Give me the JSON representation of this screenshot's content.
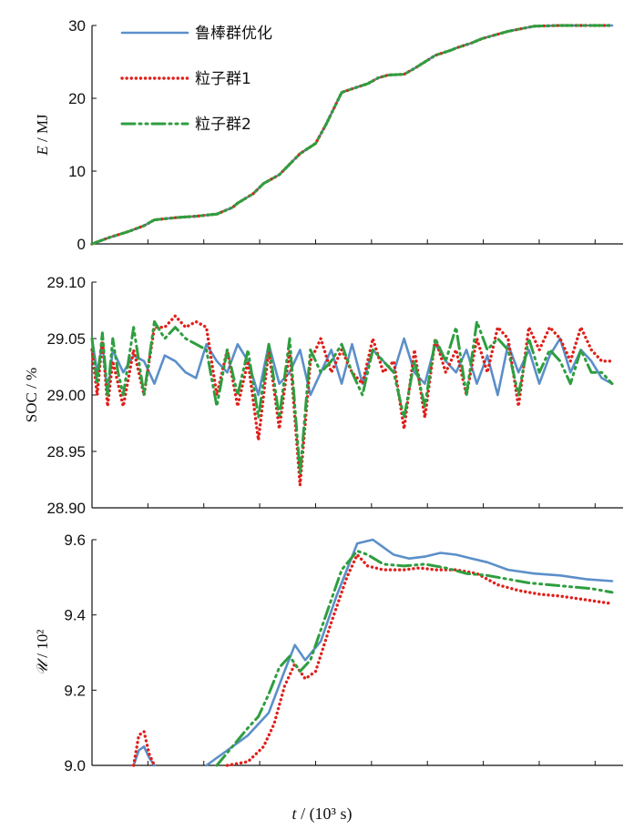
{
  "colors": {
    "series1": "#5b8fc9",
    "series2": "#e0201b",
    "series3": "#2e9e3f",
    "axis": "#111111"
  },
  "x_axis": {
    "label_italic": "t",
    "label_rest": " / (10³ s)"
  },
  "chart_data": [
    {
      "type": "line",
      "id": "energy",
      "ylabel_italic": "E",
      "ylabel_rest": " / MJ",
      "ylim": [
        0,
        30
      ],
      "yticks": [
        0,
        10,
        20,
        30
      ],
      "xlim": [
        0,
        1
      ],
      "legend": "top-left",
      "series": [
        {
          "name": "鲁棒群优化",
          "style": "solid",
          "x": [
            0,
            0.03,
            0.07,
            0.1,
            0.12,
            0.16,
            0.2,
            0.24,
            0.27,
            0.28,
            0.31,
            0.33,
            0.36,
            0.4,
            0.43,
            0.45,
            0.48,
            0.5,
            0.53,
            0.55,
            0.56,
            0.57,
            0.6,
            0.62,
            0.66,
            0.69,
            0.7,
            0.73,
            0.75,
            0.8,
            0.85,
            0.9,
            0.95,
            1.0
          ],
          "y": [
            0,
            0.8,
            1.7,
            2.5,
            3.3,
            3.6,
            3.8,
            4.1,
            5.0,
            5.6,
            6.9,
            8.3,
            9.5,
            12.4,
            13.8,
            16.4,
            20.8,
            21.3,
            22.0,
            22.8,
            23.0,
            23.2,
            23.3,
            24.1,
            25.9,
            26.6,
            26.9,
            27.6,
            28.2,
            29.2,
            29.9,
            30.6,
            31.2,
            31.6
          ]
        },
        {
          "name": "粒子群1",
          "style": "dotted",
          "x": [
            0,
            0.03,
            0.07,
            0.1,
            0.12,
            0.16,
            0.2,
            0.24,
            0.27,
            0.28,
            0.31,
            0.33,
            0.36,
            0.4,
            0.43,
            0.45,
            0.48,
            0.5,
            0.53,
            0.55,
            0.56,
            0.57,
            0.6,
            0.62,
            0.66,
            0.69,
            0.7,
            0.73,
            0.75,
            0.8,
            0.85,
            0.9,
            0.95,
            1.0
          ],
          "y": [
            0,
            0.8,
            1.7,
            2.5,
            3.3,
            3.6,
            3.8,
            4.1,
            5.0,
            5.6,
            6.9,
            8.3,
            9.5,
            12.4,
            13.8,
            16.4,
            20.8,
            21.3,
            22.0,
            22.8,
            23.0,
            23.2,
            23.3,
            24.1,
            25.9,
            26.6,
            26.9,
            27.6,
            28.2,
            29.2,
            29.9,
            30.6,
            31.2,
            31.6
          ]
        },
        {
          "name": "粒子群2",
          "style": "dashdot",
          "x": [
            0,
            0.03,
            0.07,
            0.1,
            0.12,
            0.16,
            0.2,
            0.24,
            0.27,
            0.28,
            0.31,
            0.33,
            0.36,
            0.4,
            0.43,
            0.45,
            0.48,
            0.5,
            0.53,
            0.55,
            0.56,
            0.57,
            0.6,
            0.62,
            0.66,
            0.69,
            0.7,
            0.73,
            0.75,
            0.8,
            0.85,
            0.9,
            0.95,
            1.0
          ],
          "y": [
            0,
            0.8,
            1.7,
            2.5,
            3.3,
            3.6,
            3.8,
            4.1,
            5.0,
            5.6,
            6.9,
            8.3,
            9.5,
            12.4,
            13.8,
            16.4,
            20.8,
            21.3,
            22.0,
            22.8,
            23.0,
            23.2,
            23.3,
            24.1,
            25.9,
            26.6,
            26.9,
            27.6,
            28.2,
            29.2,
            29.9,
            30.6,
            31.2,
            31.6
          ]
        }
      ]
    },
    {
      "type": "line",
      "id": "soc",
      "ylabel_italic": "",
      "ylabel_rest": "SOC / %",
      "ylim": [
        28.9,
        29.1
      ],
      "yticks": [
        28.9,
        28.95,
        29.0,
        29.05,
        29.1
      ],
      "ytick_labels": [
        "28.90",
        "28.95",
        "29.00",
        "29.05",
        "29.10"
      ],
      "xlim": [
        0,
        1
      ],
      "series": [
        {
          "name": "鲁棒群优化",
          "style": "solid",
          "x": [
            0,
            0.01,
            0.02,
            0.03,
            0.04,
            0.05,
            0.06,
            0.08,
            0.1,
            0.12,
            0.14,
            0.16,
            0.18,
            0.2,
            0.22,
            0.24,
            0.26,
            0.28,
            0.3,
            0.32,
            0.34,
            0.36,
            0.38,
            0.4,
            0.42,
            0.44,
            0.46,
            0.48,
            0.5,
            0.52,
            0.54,
            0.56,
            0.58,
            0.6,
            0.62,
            0.64,
            0.66,
            0.68,
            0.7,
            0.72,
            0.74,
            0.76,
            0.78,
            0.8,
            0.82,
            0.84,
            0.86,
            0.88,
            0.9,
            0.92,
            0.94,
            0.96,
            0.98,
            1.0
          ],
          "y": [
            29.05,
            29.02,
            29.045,
            29.0,
            29.04,
            29.03,
            29.02,
            29.035,
            29.03,
            29.01,
            29.035,
            29.03,
            29.02,
            29.015,
            29.045,
            29.03,
            29.02,
            29.045,
            29.03,
            29.0,
            29.045,
            29.01,
            29.02,
            29.04,
            29.0,
            29.02,
            29.04,
            29.01,
            29.045,
            29.01,
            29.04,
            29.03,
            29.02,
            29.05,
            29.02,
            29.01,
            29.045,
            29.03,
            29.02,
            29.04,
            29.01,
            29.035,
            29.0,
            29.045,
            29.02,
            29.04,
            29.01,
            29.035,
            29.05,
            29.02,
            29.04,
            29.03,
            29.015,
            29.01
          ]
        },
        {
          "name": "粒子群1",
          "style": "dotted",
          "x": [
            0,
            0.01,
            0.02,
            0.03,
            0.04,
            0.05,
            0.06,
            0.08,
            0.1,
            0.12,
            0.14,
            0.16,
            0.18,
            0.2,
            0.22,
            0.24,
            0.26,
            0.28,
            0.3,
            0.32,
            0.34,
            0.36,
            0.38,
            0.4,
            0.42,
            0.44,
            0.46,
            0.48,
            0.5,
            0.52,
            0.54,
            0.56,
            0.58,
            0.6,
            0.62,
            0.64,
            0.66,
            0.68,
            0.7,
            0.72,
            0.74,
            0.76,
            0.78,
            0.8,
            0.82,
            0.84,
            0.86,
            0.88,
            0.9,
            0.92,
            0.94,
            0.96,
            0.98,
            1.0
          ],
          "y": [
            29.04,
            29.0,
            29.05,
            28.99,
            29.03,
            29.01,
            28.99,
            29.04,
            29.0,
            29.06,
            29.06,
            29.07,
            29.06,
            29.065,
            29.06,
            29.0,
            29.04,
            28.99,
            29.03,
            28.96,
            29.04,
            28.97,
            29.04,
            28.92,
            29.03,
            29.05,
            29.02,
            29.04,
            29.02,
            29.01,
            29.05,
            29.02,
            29.03,
            28.97,
            29.04,
            28.98,
            29.05,
            29.02,
            29.04,
            29.0,
            29.05,
            29.02,
            29.06,
            29.05,
            28.99,
            29.06,
            29.04,
            29.06,
            29.05,
            29.03,
            29.06,
            29.04,
            29.03,
            29.03
          ]
        },
        {
          "name": "粒子群2",
          "style": "dashdot",
          "x": [
            0,
            0.01,
            0.02,
            0.03,
            0.04,
            0.05,
            0.06,
            0.08,
            0.1,
            0.12,
            0.14,
            0.16,
            0.18,
            0.2,
            0.22,
            0.24,
            0.26,
            0.28,
            0.3,
            0.32,
            0.34,
            0.36,
            0.38,
            0.4,
            0.42,
            0.44,
            0.46,
            0.48,
            0.5,
            0.52,
            0.54,
            0.56,
            0.58,
            0.6,
            0.62,
            0.64,
            0.66,
            0.68,
            0.7,
            0.72,
            0.74,
            0.76,
            0.78,
            0.8,
            0.82,
            0.84,
            0.86,
            0.88,
            0.9,
            0.92,
            0.94,
            0.96,
            0.98,
            1.0
          ],
          "y": [
            29.05,
            29.01,
            29.055,
            29.0,
            29.05,
            29.02,
            29.0,
            29.06,
            29.0,
            29.065,
            29.05,
            29.06,
            29.05,
            29.045,
            29.04,
            28.99,
            29.04,
            29.0,
            29.04,
            28.98,
            29.045,
            28.98,
            29.05,
            28.93,
            29.04,
            29.02,
            29.03,
            29.045,
            29.02,
            29.0,
            29.04,
            29.03,
            29.02,
            28.98,
            29.03,
            28.99,
            29.05,
            29.03,
            29.06,
            29.0,
            29.065,
            29.04,
            29.05,
            29.04,
            29.0,
            29.05,
            29.02,
            29.04,
            29.03,
            29.01,
            29.04,
            29.02,
            29.02,
            29.01
          ]
        }
      ]
    },
    {
      "type": "line",
      "id": "u",
      "ylabel_italic": "𝒰",
      "ylabel_rest": " / 10²",
      "ylim": [
        9.0,
        9.6
      ],
      "yticks": [
        9.0,
        9.2,
        9.4,
        9.6
      ],
      "ytick_labels": [
        "9.0",
        "9.2",
        "9.4",
        "9.6"
      ],
      "xlim": [
        0,
        1
      ],
      "series": [
        {
          "name": "鲁棒群优化",
          "style": "solid",
          "segments": [
            {
              "x": [
                0.08,
                0.09,
                0.1,
                0.11,
                0.12
              ],
              "y": [
                9.0,
                9.04,
                9.05,
                9.02,
                9.0
              ]
            },
            {
              "x": [
                0.22,
                0.26,
                0.3,
                0.34,
                0.37,
                0.39,
                0.41,
                0.44,
                0.47,
                0.51,
                0.54,
                0.56,
                0.58,
                0.61,
                0.64,
                0.67,
                0.7,
                0.73,
                0.76,
                0.8,
                0.85,
                0.9,
                0.95,
                1.0
              ],
              "y": [
                9.0,
                9.04,
                9.08,
                9.14,
                9.25,
                9.32,
                9.28,
                9.33,
                9.45,
                9.59,
                9.6,
                9.58,
                9.56,
                9.55,
                9.555,
                9.565,
                9.56,
                9.55,
                9.54,
                9.52,
                9.51,
                9.505,
                9.495,
                9.49
              ]
            }
          ]
        },
        {
          "name": "粒子群1",
          "style": "dotted",
          "segments": [
            {
              "x": [
                0.08,
                0.09,
                0.1,
                0.11,
                0.12
              ],
              "y": [
                9.0,
                9.08,
                9.09,
                9.03,
                9.0
              ]
            },
            {
              "x": [
                0.26,
                0.3,
                0.33,
                0.35,
                0.37,
                0.39,
                0.41,
                0.43,
                0.46,
                0.49,
                0.51,
                0.53,
                0.56,
                0.6,
                0.63,
                0.66,
                0.7,
                0.74,
                0.78,
                0.82,
                0.86,
                0.9,
                0.95,
                1.0
              ],
              "y": [
                9.0,
                9.01,
                9.05,
                9.11,
                9.21,
                9.27,
                9.23,
                9.25,
                9.38,
                9.5,
                9.56,
                9.53,
                9.52,
                9.52,
                9.525,
                9.52,
                9.52,
                9.51,
                9.48,
                9.465,
                9.455,
                9.45,
                9.44,
                9.43
              ]
            }
          ]
        },
        {
          "name": "粒子群2",
          "style": "dashdot",
          "segments": [
            {
              "x": [
                0.24,
                0.27,
                0.3,
                0.32,
                0.34,
                0.36,
                0.38,
                0.4,
                0.42,
                0.45,
                0.48,
                0.51,
                0.53,
                0.56,
                0.6,
                0.64,
                0.68,
                0.72,
                0.76,
                0.8,
                0.84,
                0.88,
                0.92,
                0.96,
                1.0
              ],
              "y": [
                9.0,
                9.05,
                9.1,
                9.13,
                9.19,
                9.26,
                9.29,
                9.25,
                9.28,
                9.4,
                9.52,
                9.57,
                9.56,
                9.535,
                9.53,
                9.535,
                9.525,
                9.51,
                9.505,
                9.495,
                9.485,
                9.48,
                9.475,
                9.47,
                9.46
              ]
            }
          ]
        }
      ]
    }
  ]
}
